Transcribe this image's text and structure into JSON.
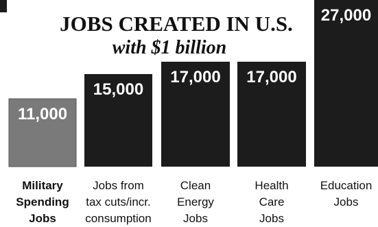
{
  "chart_data": {
    "type": "bar",
    "title": "JOBS CREATED IN U.S.",
    "subtitle": "with $1 billion",
    "categories": [
      [
        "Military",
        "Spending",
        "Jobs"
      ],
      [
        "Jobs from",
        "tax cuts/incr.",
        "consumption"
      ],
      [
        "Clean",
        "Energy",
        "Jobs"
      ],
      [
        "Health",
        "Care",
        "Jobs"
      ],
      [
        "Education",
        "Jobs"
      ]
    ],
    "values": [
      11000,
      15000,
      17000,
      17000,
      27000
    ],
    "value_labels": [
      "11,000",
      "15,000",
      "17,000",
      "17,000",
      "27,000"
    ],
    "highlight_index": 0,
    "colors": {
      "highlight": "#7a7a7a",
      "bar": "#1c1c1c",
      "corner": "#1c1c1c",
      "title": "#111111"
    }
  }
}
